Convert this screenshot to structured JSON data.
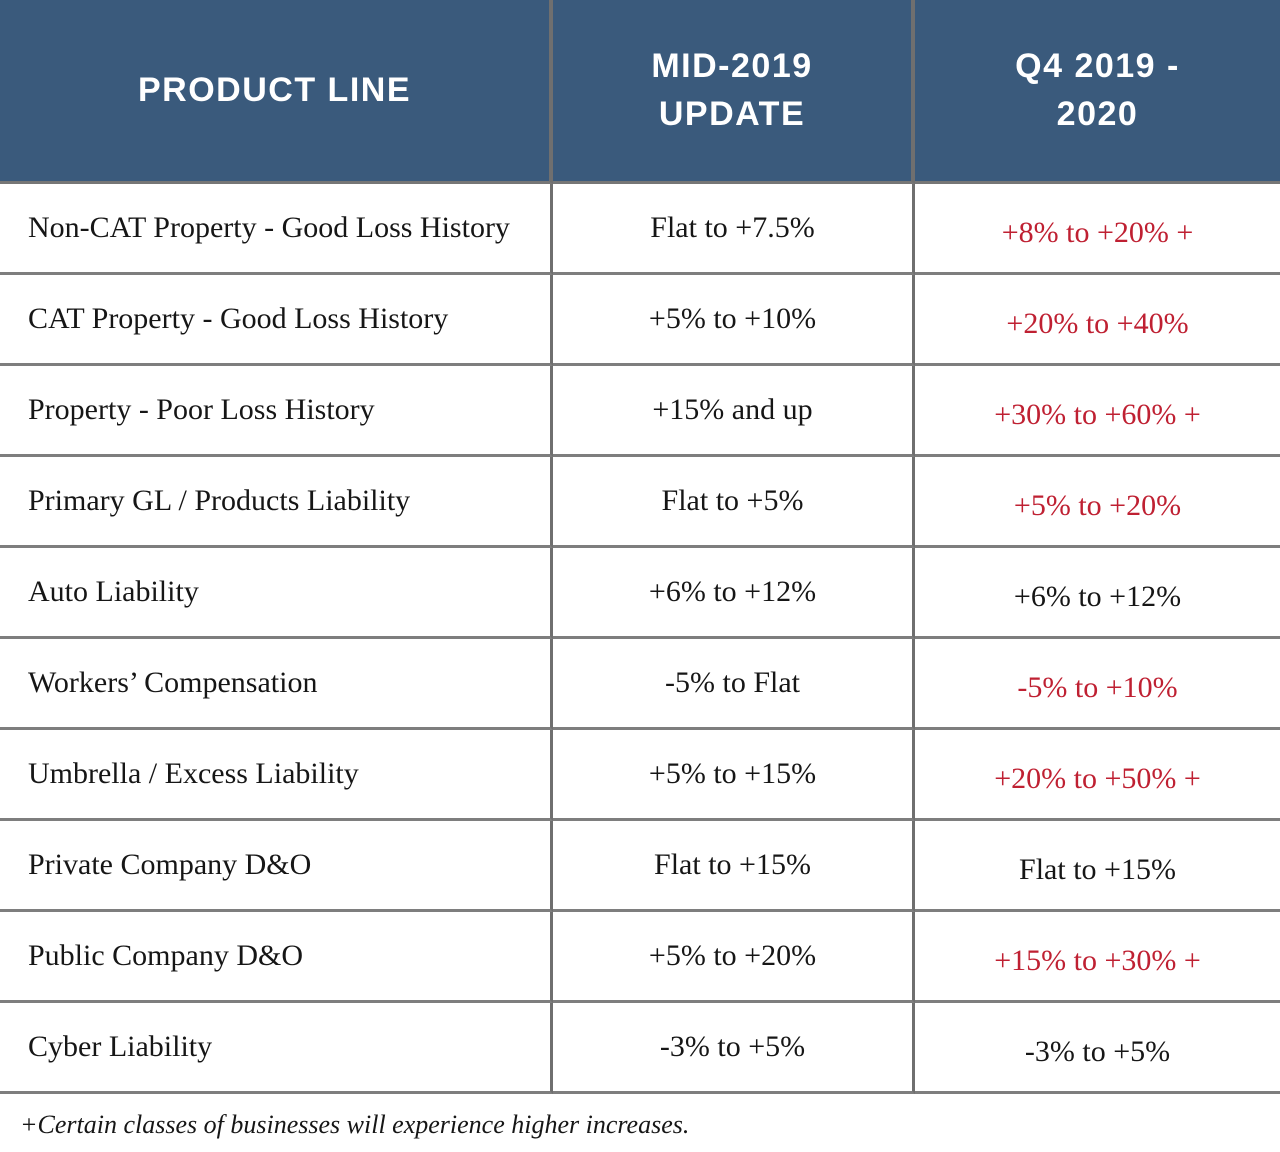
{
  "colors": {
    "header_bg": "#3a5a7c",
    "header_text": "#ffffff",
    "body_text": "#161616",
    "emphasis_red": "#bf2032",
    "grid_line": "#7e7e7e"
  },
  "header_display": {
    "col1": "PRODUCT LINE",
    "col2": "MID-2019\nUPDATE",
    "col3": "Q4 2019 -\n2020"
  },
  "footnote": "+Certain classes of businesses will experience higher increases.",
  "chart_data": {
    "type": "table",
    "columns": [
      "PRODUCT LINE",
      "MID-2019 UPDATE",
      "Q4 2019 - 2020"
    ],
    "rows": [
      {
        "product": "Non-CAT Property - Good Loss History",
        "mid_2019_update": "Flat to +7.5%",
        "q4_2019_2020": "+8% to +20% +",
        "q4_emphasized": true
      },
      {
        "product": "CAT Property - Good Loss History",
        "mid_2019_update": "+5% to +10%",
        "q4_2019_2020": "+20% to +40%",
        "q4_emphasized": true
      },
      {
        "product": "Property - Poor Loss History",
        "mid_2019_update": "+15% and up",
        "q4_2019_2020": "+30% to +60% +",
        "q4_emphasized": true
      },
      {
        "product": "Primary GL / Products Liability",
        "mid_2019_update": "Flat to +5%",
        "q4_2019_2020": "+5% to +20%",
        "q4_emphasized": true
      },
      {
        "product": "Auto Liability",
        "mid_2019_update": "+6% to +12%",
        "q4_2019_2020": "+6% to +12%",
        "q4_emphasized": false
      },
      {
        "product": "Workers’ Compensation",
        "mid_2019_update": "-5% to Flat",
        "q4_2019_2020": "-5% to +10%",
        "q4_emphasized": true
      },
      {
        "product": "Umbrella / Excess Liability",
        "mid_2019_update": "+5% to +15%",
        "q4_2019_2020": "+20% to +50% +",
        "q4_emphasized": true
      },
      {
        "product": "Private Company D&O",
        "mid_2019_update": "Flat to +15%",
        "q4_2019_2020": "Flat to +15%",
        "q4_emphasized": false
      },
      {
        "product": "Public Company D&O",
        "mid_2019_update": "+5% to +20%",
        "q4_2019_2020": "+15% to +30% +",
        "q4_emphasized": true
      },
      {
        "product": "Cyber Liability",
        "mid_2019_update": "-3% to +5%",
        "q4_2019_2020": "-3% to +5%",
        "q4_emphasized": false
      }
    ]
  }
}
